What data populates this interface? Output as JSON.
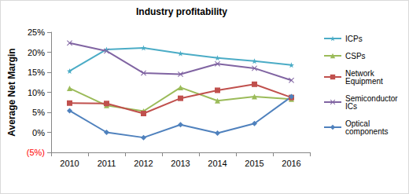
{
  "chart_data": {
    "type": "line",
    "title": "Industry profitability",
    "y_label": "Average Net Margin",
    "categories": [
      "2010",
      "2011",
      "2012",
      "2013",
      "2014",
      "2015",
      "2016"
    ],
    "series": [
      {
        "name": "ICPs",
        "color": "#4bacc6",
        "marker": "star",
        "values": [
          15.3,
          20.7,
          21.1,
          19.7,
          18.6,
          17.8,
          16.8
        ]
      },
      {
        "name": "CSPs",
        "color": "#9bbb59",
        "marker": "triangle",
        "values": [
          11.0,
          6.7,
          5.3,
          11.2,
          7.9,
          8.9,
          8.3
        ]
      },
      {
        "name": "Network Equipment",
        "color": "#c0504d",
        "marker": "square",
        "values": [
          7.3,
          7.2,
          4.7,
          8.5,
          10.5,
          12.0,
          8.7
        ]
      },
      {
        "name": "Semiconductor ICs",
        "color": "#8064a2",
        "marker": "x",
        "values": [
          22.3,
          20.3,
          14.8,
          14.5,
          17.1,
          16.0,
          13.0
        ]
      },
      {
        "name": "Optical components",
        "color": "#4f81bd",
        "marker": "diamond",
        "values": [
          5.4,
          0.0,
          -1.3,
          1.9,
          -0.2,
          2.2,
          8.9
        ]
      }
    ],
    "ylim": [
      -5,
      25
    ],
    "yticks": [
      {
        "value": -5,
        "label": "(5%)"
      },
      {
        "value": 0,
        "label": "0%"
      },
      {
        "value": 5,
        "label": "5%"
      },
      {
        "value": 10,
        "label": "10%"
      },
      {
        "value": 15,
        "label": "15%"
      },
      {
        "value": 20,
        "label": "20%"
      },
      {
        "value": 25,
        "label": "25%"
      }
    ],
    "grid": false,
    "legend": "right"
  }
}
